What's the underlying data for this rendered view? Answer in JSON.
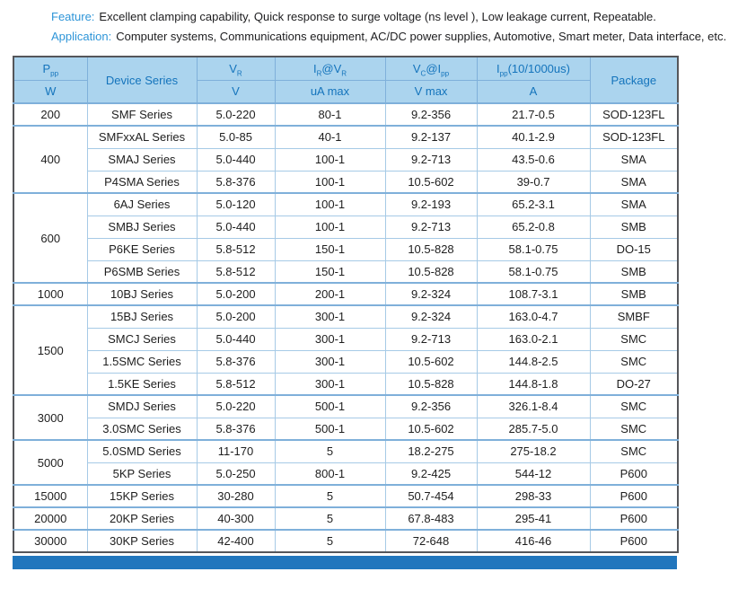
{
  "colors": {
    "accent": "#1474bc",
    "header-bg": "#abd4ee",
    "line": "#a6cae6",
    "line-strong": "#7fb0da",
    "outer": "#55565a",
    "strip": "#2176bd",
    "intro-label": "#2e95d8",
    "text": "#1e1e1e"
  },
  "intro": {
    "feature_label": "Feature:",
    "feature_text": "Excellent clamping capability, Quick response to surge voltage (ns level ), Low leakage current,  Repeatable.",
    "application_label": "Application:",
    "application_text": "Computer systems,  Communications equipment, AC/DC power supplies, Automotive, Smart meter, Data interface, etc."
  },
  "table": {
    "header": {
      "ppp": "P_{pp}",
      "device_series": "Device Series",
      "vr": "V_{R}",
      "ir_at_vr": "I_{R}@V_{R}",
      "vc_at_ipp": "V_{C}@I_{pp}",
      "ipp": "I_{pp}(10/1000us)",
      "package": "Package"
    },
    "units": {
      "ppp": "W",
      "vr": "V",
      "ir": "uA max",
      "vc": "V max",
      "ipp": "A"
    },
    "groups": [
      {
        "ppp": "200",
        "rows": [
          [
            "SMF Series",
            "5.0-220",
            "80-1",
            "9.2-356",
            "21.7-0.5",
            "SOD-123FL"
          ]
        ]
      },
      {
        "ppp": "400",
        "rows": [
          [
            "SMFxxAL Series",
            "5.0-85",
            "40-1",
            "9.2-137",
            "40.1-2.9",
            "SOD-123FL"
          ],
          [
            "SMAJ Series",
            "5.0-440",
            "100-1",
            "9.2-713",
            "43.5-0.6",
            "SMA"
          ],
          [
            "P4SMA Series",
            "5.8-376",
            "100-1",
            "10.5-602",
            "39-0.7",
            "SMA"
          ]
        ]
      },
      {
        "ppp": "600",
        "rows": [
          [
            "6AJ Series",
            "5.0-120",
            "100-1",
            "9.2-193",
            "65.2-3.1",
            "SMA"
          ],
          [
            "SMBJ Series",
            "5.0-440",
            "100-1",
            "9.2-713",
            "65.2-0.8",
            "SMB"
          ],
          [
            "P6KE Series",
            "5.8-512",
            "150-1",
            "10.5-828",
            "58.1-0.75",
            "DO-15"
          ],
          [
            "P6SMB Series",
            "5.8-512",
            "150-1",
            "10.5-828",
            "58.1-0.75",
            "SMB"
          ]
        ]
      },
      {
        "ppp": "1000",
        "rows": [
          [
            "10BJ Series",
            "5.0-200",
            "200-1",
            "9.2-324",
            "108.7-3.1",
            "SMB"
          ]
        ]
      },
      {
        "ppp": "1500",
        "rows": [
          [
            "15BJ Series",
            "5.0-200",
            "300-1",
            "9.2-324",
            "163.0-4.7",
            "SMBF"
          ],
          [
            "SMCJ Series",
            "5.0-440",
            "300-1",
            "9.2-713",
            "163.0-2.1",
            "SMC"
          ],
          [
            "1.5SMC Series",
            "5.8-376",
            "300-1",
            "10.5-602",
            "144.8-2.5",
            "SMC"
          ],
          [
            "1.5KE Series",
            "5.8-512",
            "300-1",
            "10.5-828",
            "144.8-1.8",
            "DO-27"
          ]
        ]
      },
      {
        "ppp": "3000",
        "rows": [
          [
            "SMDJ Series",
            "5.0-220",
            "500-1",
            "9.2-356",
            "326.1-8.4",
            "SMC"
          ],
          [
            "3.0SMC Series",
            "5.8-376",
            "500-1",
            "10.5-602",
            "285.7-5.0",
            "SMC"
          ]
        ]
      },
      {
        "ppp": "5000",
        "rows": [
          [
            "5.0SMD Series",
            "11-170",
            "5",
            "18.2-275",
            "275-18.2",
            "SMC"
          ],
          [
            "5KP Series",
            "5.0-250",
            "800-1",
            "9.2-425",
            "544-12",
            "P600"
          ]
        ]
      },
      {
        "ppp": "15000",
        "rows": [
          [
            "15KP Series",
            "30-280",
            "5",
            "50.7-454",
            "298-33",
            "P600"
          ]
        ]
      },
      {
        "ppp": "20000",
        "rows": [
          [
            "20KP Series",
            "40-300",
            "5",
            "67.8-483",
            "295-41",
            "P600"
          ]
        ]
      },
      {
        "ppp": "30000",
        "rows": [
          [
            "30KP Series",
            "42-400",
            "5",
            "72-648",
            "416-46",
            "P600"
          ]
        ]
      }
    ]
  }
}
